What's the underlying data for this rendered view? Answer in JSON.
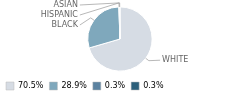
{
  "chart_data": {
    "type": "pie",
    "categories": [
      "WHITE",
      "BLACK",
      "HISPANIC",
      "ASIAN"
    ],
    "values": [
      70.5,
      28.9,
      0.3,
      0.3
    ],
    "value_labels": [
      "70.5%",
      "28.9%",
      "0.3%",
      "0.3%"
    ],
    "colors": [
      "#d6dce4",
      "#7fa8bc",
      "#5b82a0",
      "#2c5f7a"
    ],
    "legend": "lower left"
  }
}
